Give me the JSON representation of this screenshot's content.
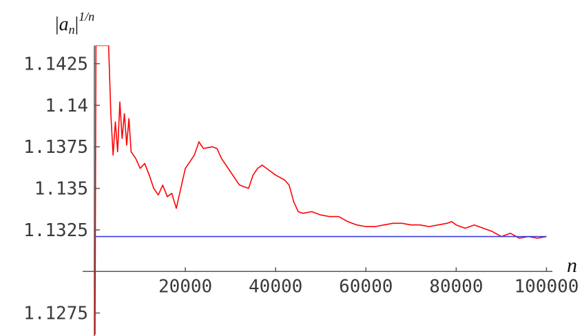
{
  "chart_data": {
    "type": "line",
    "title": "",
    "xlabel": "n",
    "ylabel": "|a_n|^{1/n}",
    "ylabel_parts": {
      "left_bar": "|",
      "a": "a",
      "sub": "n",
      "right_bar": "|",
      "exponent": "1/n"
    },
    "xlim": [
      0,
      101000
    ],
    "ylim": [
      1.1262,
      1.1436
    ],
    "x_axis_at_y": 1.13,
    "y_axis_at_x": 0,
    "x_ticks": [
      {
        "value": 20000,
        "label": "20000"
      },
      {
        "value": 40000,
        "label": "40000"
      },
      {
        "value": 60000,
        "label": "60000"
      },
      {
        "value": 80000,
        "label": "80000"
      },
      {
        "value": 100000,
        "label": "100000"
      }
    ],
    "y_ticks": [
      {
        "value": 1.1275,
        "label": "1.1275"
      },
      {
        "value": 1.1325,
        "label": "1.1325"
      },
      {
        "value": 1.135,
        "label": "1.135"
      },
      {
        "value": 1.1375,
        "label": "1.1375"
      },
      {
        "value": 1.14,
        "label": "1.14"
      },
      {
        "value": 1.1425,
        "label": "1.1425"
      }
    ],
    "grid": false,
    "series": [
      {
        "color": "#ff0000",
        "style": "line",
        "x": [
          0,
          200,
          400,
          600,
          800,
          1000,
          1300,
          1700,
          2000,
          2500,
          3000,
          3500,
          4000,
          4500,
          5000,
          5500,
          6000,
          6500,
          7000,
          7500,
          8000,
          9000,
          10000,
          11000,
          12000,
          13000,
          14000,
          15000,
          16000,
          17000,
          18000,
          19000,
          20000,
          22000,
          23000,
          24000,
          26000,
          27000,
          28000,
          30000,
          32000,
          34000,
          35000,
          36000,
          37000,
          38000,
          40000,
          42000,
          43000,
          44000,
          45000,
          46000,
          48000,
          50000,
          52000,
          54000,
          56000,
          58000,
          60000,
          62000,
          64000,
          66000,
          68000,
          70000,
          72000,
          74000,
          76000,
          78000,
          79000,
          80000,
          82000,
          84000,
          86000,
          88000,
          90000,
          92000,
          94000,
          96000,
          98000,
          100000
        ],
        "y": [
          1.1262,
          1.1436,
          1.1436,
          1.1436,
          1.1436,
          1.1436,
          1.1436,
          1.1436,
          1.1436,
          1.1436,
          1.1436,
          1.1395,
          1.137,
          1.139,
          1.1372,
          1.1402,
          1.138,
          1.1395,
          1.1376,
          1.1392,
          1.1372,
          1.1368,
          1.1362,
          1.1365,
          1.1358,
          1.135,
          1.1346,
          1.1352,
          1.1345,
          1.1347,
          1.1338,
          1.135,
          1.1362,
          1.137,
          1.1378,
          1.1374,
          1.1375,
          1.1374,
          1.1368,
          1.136,
          1.1352,
          1.135,
          1.1358,
          1.1362,
          1.1364,
          1.1362,
          1.1358,
          1.1355,
          1.1352,
          1.1342,
          1.1336,
          1.1335,
          1.1336,
          1.1334,
          1.1333,
          1.1333,
          1.133,
          1.1328,
          1.1327,
          1.1327,
          1.1328,
          1.1329,
          1.1329,
          1.1328,
          1.1328,
          1.1327,
          1.1328,
          1.1329,
          1.133,
          1.1328,
          1.1326,
          1.1328,
          1.1326,
          1.1324,
          1.1321,
          1.1323,
          1.132,
          1.1321,
          1.132,
          1.1321
        ]
      },
      {
        "color": "#3b3bdd",
        "style": "line",
        "x": [
          0,
          100000
        ],
        "y": [
          1.1321,
          1.1321
        ]
      }
    ]
  }
}
